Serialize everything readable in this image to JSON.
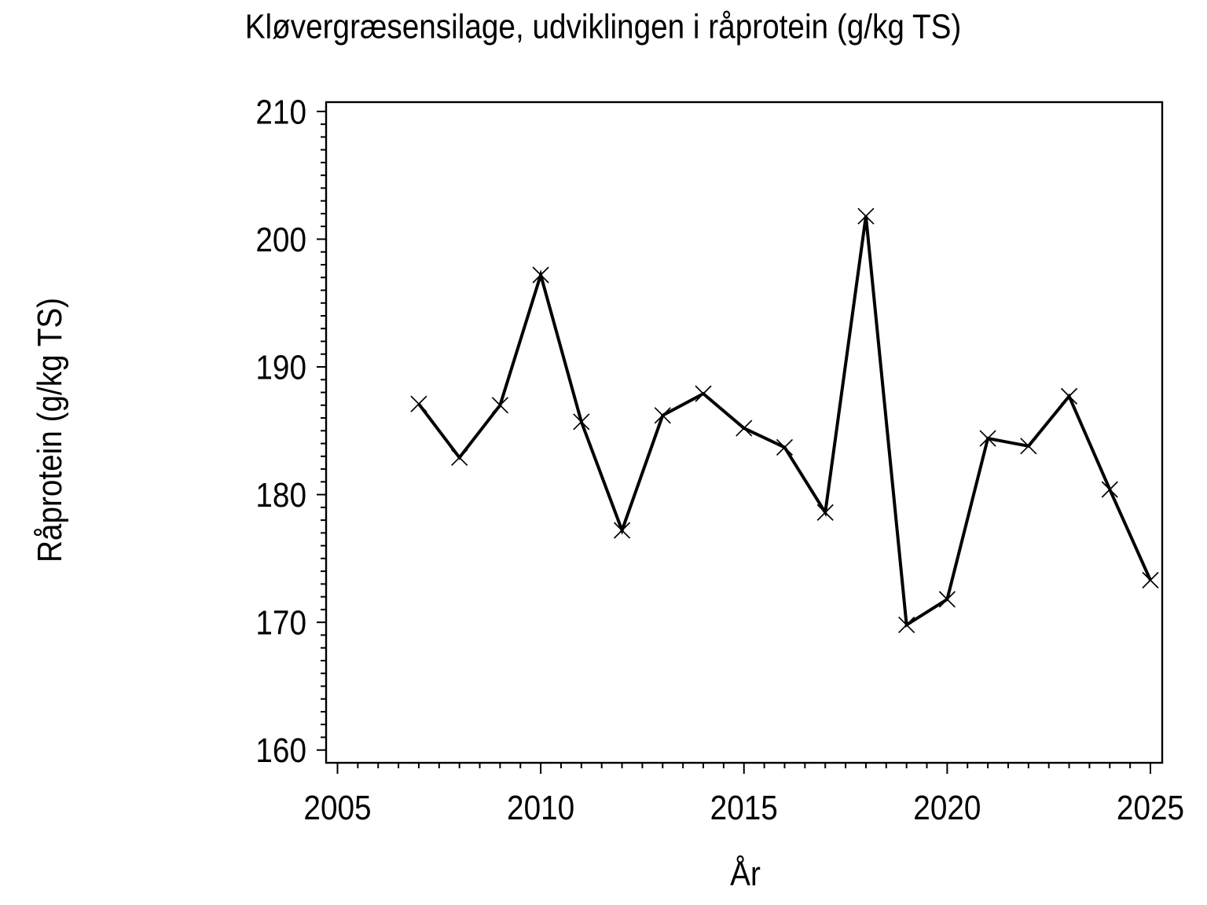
{
  "page": {
    "background": "#ffffff",
    "foreground": "#000000"
  },
  "chart_data": {
    "type": "line",
    "title": "Kløvergræsensilage, udviklingen i råprotein (g/kg TS)",
    "xlabel": "År",
    "ylabel": "Råprotein (g/kg TS)",
    "x": [
      2007,
      2008,
      2009,
      2010,
      2011,
      2012,
      2013,
      2014,
      2015,
      2016,
      2017,
      2018,
      2019,
      2020,
      2021,
      2022,
      2023,
      2024,
      2025
    ],
    "series": [
      {
        "name": "Råprotein (g/kg TS)",
        "values": [
          187.1,
          182.9,
          187.0,
          197.2,
          185.7,
          177.2,
          186.2,
          187.9,
          185.2,
          183.7,
          178.6,
          201.8,
          169.8,
          171.8,
          184.4,
          183.8,
          187.7,
          180.4,
          173.3
        ]
      }
    ],
    "xlim": [
      2004.72,
      2025.29
    ],
    "ylim": [
      159.0,
      210.73
    ],
    "x_major_ticks": [
      2005,
      2010,
      2015,
      2020,
      2025
    ],
    "x_minor_step": 0.5,
    "y_major_ticks": [
      160,
      170,
      180,
      190,
      200,
      210
    ],
    "y_minor_step": 1,
    "marker": "x",
    "line_color": "#000000",
    "marker_color": "#000000",
    "axis_color": "#000000",
    "grid": false,
    "legend": false
  }
}
